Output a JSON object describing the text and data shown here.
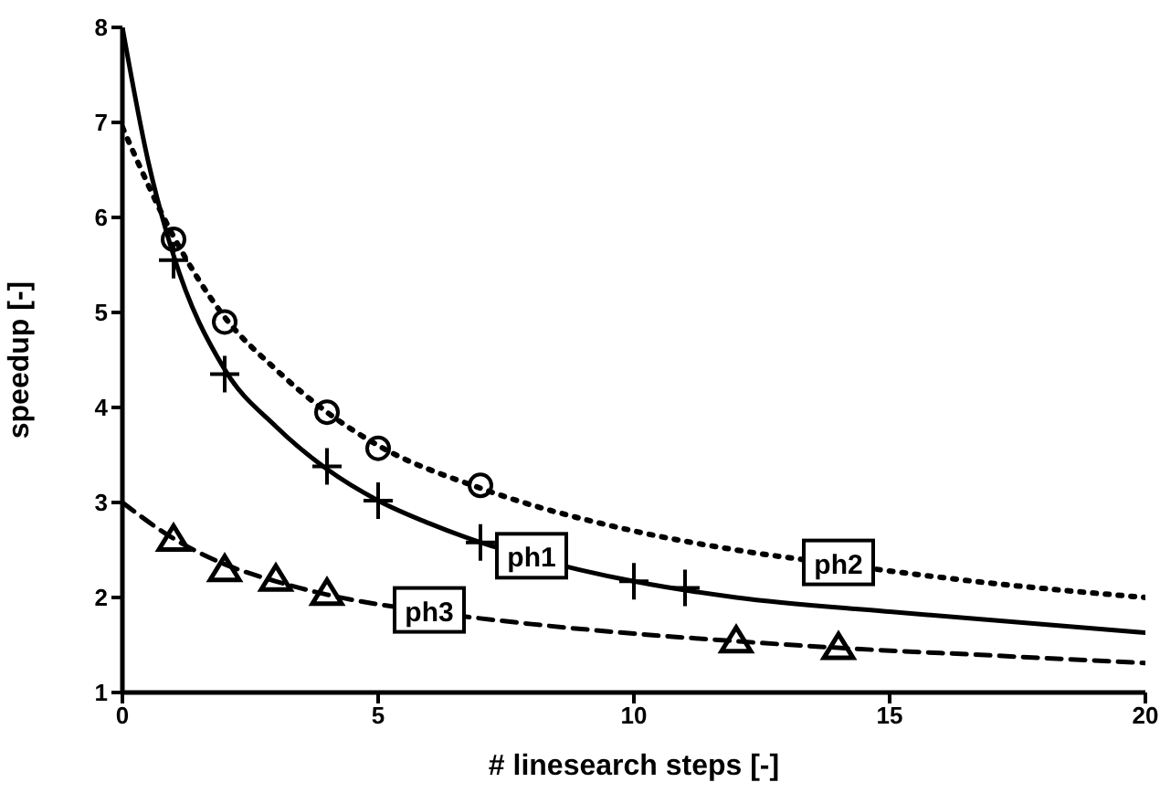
{
  "chart_data": {
    "type": "line",
    "xlabel": "# linesearch steps [-]",
    "ylabel": "speedup [-]",
    "xlim": [
      0,
      20
    ],
    "xticks": [
      0,
      5,
      10,
      15,
      20
    ],
    "ylim": [
      1,
      8
    ],
    "yticks": [
      1,
      2,
      3,
      4,
      5,
      6,
      7,
      8
    ],
    "grid": false,
    "legend": false,
    "series": [
      {
        "type": "scatter",
        "color": "#000000",
        "marker": "cross",
        "x": [
          1,
          2,
          4,
          5,
          7,
          10,
          11
        ],
        "values": [
          5.55,
          4.35,
          3.38,
          3.02,
          2.58,
          2.17,
          2.1
        ]
      },
      {
        "type": "scatter",
        "color": "#000000",
        "marker": "circle",
        "x": [
          1,
          2,
          4,
          5,
          7
        ],
        "values": [
          5.77,
          4.9,
          3.95,
          3.57,
          3.18
        ]
      },
      {
        "type": "scatter",
        "color": "#000000",
        "marker": "triangle",
        "x": [
          1,
          2,
          3,
          4,
          12,
          14
        ],
        "values": [
          2.62,
          2.3,
          2.2,
          2.05,
          1.55,
          1.48
        ]
      },
      {
        "type": "line",
        "name": "ph1",
        "color": "#000000",
        "line_style": "solid",
        "marker": "none",
        "x": [
          0,
          0.5,
          1,
          2,
          3,
          4,
          5,
          6,
          7,
          8,
          10,
          12,
          15,
          20
        ],
        "values": [
          8,
          6.6,
          5.6,
          4.4,
          3.8,
          3.35,
          3.02,
          2.78,
          2.58,
          2.42,
          2.17,
          2.0,
          1.85,
          1.63
        ]
      },
      {
        "type": "line",
        "name": "ph2",
        "color": "#000000",
        "line_style": "dotted",
        "marker": "none",
        "x": [
          0,
          1,
          2,
          3,
          4,
          5,
          7,
          10,
          12,
          14,
          17,
          20
        ],
        "values": [
          6.95,
          5.8,
          4.95,
          4.4,
          3.95,
          3.6,
          3.15,
          2.7,
          2.5,
          2.35,
          2.15,
          2.0
        ]
      },
      {
        "type": "line",
        "name": "ph3",
        "color": "#000000",
        "line_style": "dashed",
        "marker": "none",
        "x": [
          0,
          1,
          2,
          3,
          4,
          6,
          8,
          10,
          12,
          14,
          17,
          20
        ],
        "values": [
          3.0,
          2.62,
          2.35,
          2.17,
          2.03,
          1.85,
          1.72,
          1.62,
          1.54,
          1.47,
          1.39,
          1.31
        ]
      }
    ]
  }
}
